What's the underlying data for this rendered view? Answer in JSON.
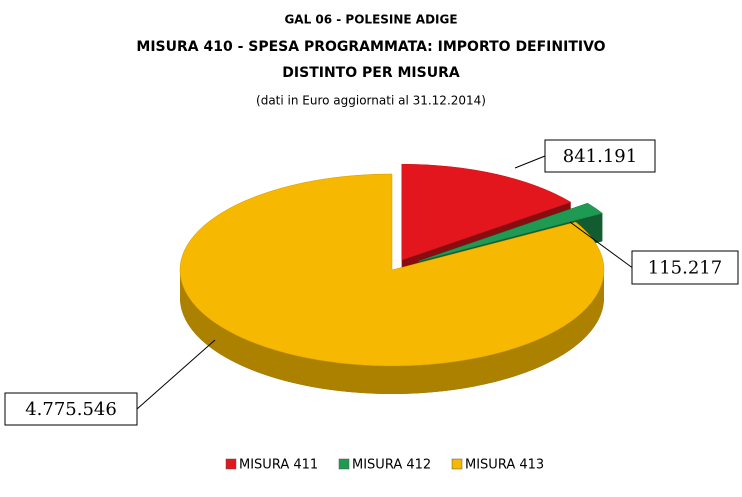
{
  "chart_data": {
    "type": "pie",
    "title": [
      "GAL 06 - POLESINE ADIGE",
      "MISURA 410 - SPESA PROGRAMMATA: IMPORTO DEFINITIVO",
      "DISTINTO PER MISURA"
    ],
    "subtitle": "(dati in Euro aggiornati al 31.12.2014)",
    "categories": [
      "MISURA 411",
      "MISURA 412",
      "MISURA 413"
    ],
    "values": [
      841191,
      115217,
      4775546
    ],
    "value_labels": [
      "841.191",
      "115.217",
      "4.775.546"
    ],
    "colors": [
      "#e3161d",
      "#1f9a52",
      "#f6b800"
    ],
    "legend": "bottom"
  }
}
